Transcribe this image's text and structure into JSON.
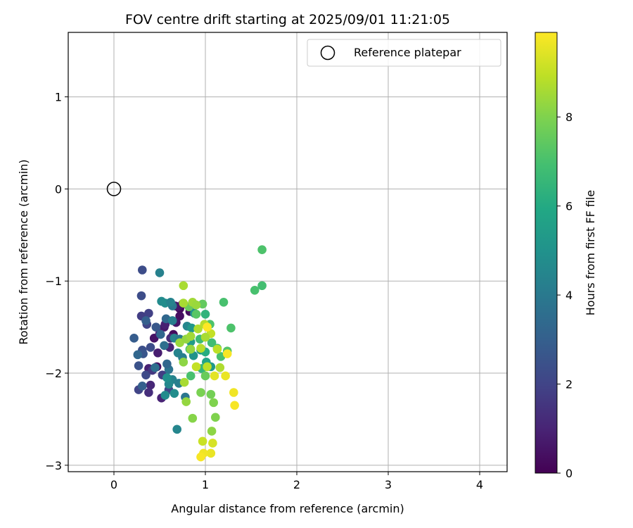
{
  "chart_data": {
    "type": "scatter",
    "title": "FOV centre drift starting at 2025/09/01 11:21:05",
    "xlabel": "Angular distance from reference (arcmin)",
    "ylabel": "Rotation from reference (arcmin)",
    "xlim": [
      -0.5,
      4.3
    ],
    "ylim": [
      -3.07,
      1.7
    ],
    "xticks": [
      0,
      1,
      2,
      3,
      4
    ],
    "yticks": [
      1,
      0,
      -1,
      -2,
      -3
    ],
    "xtick_labels": [
      "0",
      "1",
      "2",
      "3",
      "4"
    ],
    "ytick_labels": [
      "1",
      "0",
      "−1",
      "−2",
      "−3"
    ],
    "grid": true,
    "legend": {
      "location": "top-right",
      "label": "Reference platepar"
    },
    "reference_point": {
      "x": 0,
      "y": 0
    },
    "colorbar": {
      "label": "Hours from first FF file",
      "range": [
        0,
        9.9
      ],
      "ticks": [
        0,
        2,
        4,
        6,
        8
      ],
      "tick_labels": [
        "0",
        "2",
        "4",
        "6",
        "8"
      ],
      "colormap": "viridis"
    },
    "points": [
      [
        0.72,
        -1.3,
        0.2
      ],
      [
        0.83,
        -1.33,
        0.3
      ],
      [
        0.72,
        -1.38,
        0.4
      ],
      [
        0.68,
        -1.45,
        0.6
      ],
      [
        0.65,
        -1.58,
        0.3
      ],
      [
        0.55,
        -1.5,
        0.7
      ],
      [
        0.44,
        -1.62,
        0.5
      ],
      [
        0.48,
        -1.78,
        0.8
      ],
      [
        0.47,
        -1.93,
        0.4
      ],
      [
        0.38,
        -1.95,
        0.9
      ],
      [
        0.56,
        -1.47,
        0.9
      ],
      [
        0.75,
        -1.25,
        0.4
      ],
      [
        0.61,
        -1.72,
        1.0
      ],
      [
        0.4,
        -2.13,
        1.1
      ],
      [
        0.38,
        -2.21,
        1.3
      ],
      [
        0.52,
        -2.27,
        1.0
      ],
      [
        0.67,
        -1.27,
        0.8
      ],
      [
        0.62,
        -1.62,
        1.2
      ],
      [
        0.5,
        -1.57,
        1.0
      ],
      [
        0.7,
        -1.28,
        0.6
      ],
      [
        0.3,
        -1.38,
        1.8
      ],
      [
        0.38,
        -1.35,
        1.9
      ],
      [
        0.36,
        -1.47,
        2.0
      ],
      [
        0.31,
        -1.75,
        2.4
      ],
      [
        0.27,
        -1.92,
        2.5
      ],
      [
        0.35,
        -2.02,
        2.2
      ],
      [
        0.27,
        -2.18,
        2.0
      ],
      [
        0.42,
        -1.97,
        1.6
      ],
      [
        0.53,
        -2.02,
        1.8
      ],
      [
        0.6,
        -2.18,
        2.1
      ],
      [
        0.22,
        -1.62,
        2.9
      ],
      [
        0.4,
        -1.72,
        2.3
      ],
      [
        0.32,
        -1.79,
        2.6
      ],
      [
        0.3,
        -1.16,
        2.3
      ],
      [
        0.31,
        -0.88,
        2.3
      ],
      [
        0.46,
        -1.5,
        2.7
      ],
      [
        0.35,
        -1.43,
        3.0
      ],
      [
        0.31,
        -2.14,
        3.0
      ],
      [
        0.45,
        -1.94,
        3.6
      ],
      [
        0.57,
        -1.41,
        3.3
      ],
      [
        0.26,
        -1.8,
        3.3
      ],
      [
        0.51,
        -1.58,
        3.3
      ],
      [
        0.55,
        -1.7,
        3.6
      ],
      [
        0.6,
        -1.96,
        3.8
      ],
      [
        0.58,
        -1.9,
        3.3
      ],
      [
        0.64,
        -1.27,
        4.0
      ],
      [
        0.5,
        -0.91,
        4.3
      ],
      [
        0.52,
        -1.22,
        4.7
      ],
      [
        0.56,
        -1.24,
        4.8
      ],
      [
        0.62,
        -1.23,
        4.4
      ],
      [
        0.64,
        -1.43,
        4.2
      ],
      [
        0.66,
        -1.62,
        4.4
      ],
      [
        0.64,
        -2.07,
        4.4
      ],
      [
        0.6,
        -2.12,
        4.6
      ],
      [
        0.71,
        -2.11,
        4.2
      ],
      [
        0.66,
        -2.22,
        4.8
      ],
      [
        0.56,
        -2.24,
        4.7
      ],
      [
        0.58,
        -2.05,
        4.9
      ],
      [
        0.69,
        -2.61,
        4.5
      ],
      [
        0.7,
        -1.78,
        4.4
      ],
      [
        0.75,
        -1.83,
        4.2
      ],
      [
        0.8,
        -1.49,
        4.5
      ],
      [
        0.78,
        -2.26,
        3.9
      ],
      [
        0.85,
        -1.26,
        4.1
      ],
      [
        0.72,
        -1.63,
        4.0
      ],
      [
        0.88,
        -1.35,
        5.0
      ],
      [
        0.85,
        -1.51,
        5.2
      ],
      [
        0.84,
        -1.66,
        5.4
      ],
      [
        0.87,
        -1.81,
        5.1
      ],
      [
        0.95,
        -1.75,
        5.3
      ],
      [
        1.0,
        -1.77,
        6.1
      ],
      [
        1.01,
        -1.88,
        5.8
      ],
      [
        1.06,
        -1.93,
        5.3
      ],
      [
        1.0,
        -1.36,
        6.4
      ],
      [
        0.94,
        -1.63,
        6.7
      ],
      [
        0.83,
        -1.74,
        6.8
      ],
      [
        0.84,
        -2.03,
        7.0
      ],
      [
        0.96,
        -1.95,
        6.5
      ],
      [
        1.07,
        -1.67,
        6.8
      ],
      [
        1.13,
        -1.73,
        6.9
      ],
      [
        1.2,
        -1.23,
        7.0
      ],
      [
        1.28,
        -1.51,
        7.1
      ],
      [
        1.24,
        -1.76,
        7.2
      ],
      [
        1.17,
        -1.82,
        7.0
      ],
      [
        1.05,
        -1.47,
        7.1
      ],
      [
        0.9,
        -1.36,
        7.3
      ],
      [
        1.54,
        -1.1,
        7.0
      ],
      [
        1.62,
        -1.05,
        6.9
      ],
      [
        1.62,
        -0.66,
        7.1
      ],
      [
        1.0,
        -2.03,
        7.6
      ],
      [
        0.97,
        -1.25,
        7.5
      ],
      [
        0.82,
        -1.28,
        7.6
      ],
      [
        1.06,
        -2.23,
        7.8
      ],
      [
        1.09,
        -2.32,
        8.0
      ],
      [
        0.95,
        -2.21,
        7.9
      ],
      [
        1.11,
        -2.48,
        8.0
      ],
      [
        0.86,
        -2.49,
        8.1
      ],
      [
        1.07,
        -2.63,
        8.2
      ],
      [
        0.79,
        -2.31,
        8.3
      ],
      [
        0.76,
        -1.88,
        8.2
      ],
      [
        0.72,
        -1.67,
        8.4
      ],
      [
        0.79,
        -1.63,
        8.3
      ],
      [
        0.84,
        -1.6,
        8.5
      ],
      [
        0.84,
        -1.74,
        8.3
      ],
      [
        0.76,
        -1.05,
        8.6
      ],
      [
        0.76,
        -1.24,
        8.6
      ],
      [
        0.86,
        -1.23,
        8.5
      ],
      [
        0.92,
        -1.52,
        8.7
      ],
      [
        0.9,
        -1.26,
        8.4
      ],
      [
        0.99,
        -1.47,
        8.8
      ],
      [
        0.77,
        -2.1,
        8.6
      ],
      [
        0.95,
        -1.73,
        8.8
      ],
      [
        1.13,
        -1.74,
        8.9
      ],
      [
        1.06,
        -1.57,
        9.0
      ],
      [
        1.16,
        -1.94,
        8.7
      ],
      [
        1.02,
        -1.93,
        8.9
      ],
      [
        1.0,
        -1.61,
        8.6
      ],
      [
        0.9,
        -1.93,
        9.0
      ],
      [
        0.97,
        -2.74,
        9.1
      ],
      [
        1.08,
        -2.76,
        9.3
      ],
      [
        1.22,
        -2.03,
        9.6
      ],
      [
        1.24,
        -1.79,
        9.8
      ],
      [
        1.31,
        -2.21,
        9.7
      ],
      [
        1.32,
        -2.35,
        9.8
      ],
      [
        1.06,
        -2.87,
        9.6
      ],
      [
        0.98,
        -2.87,
        9.7
      ],
      [
        0.95,
        -2.91,
        9.8
      ],
      [
        1.02,
        -1.5,
        9.9
      ],
      [
        1.1,
        -2.03,
        9.5
      ]
    ]
  }
}
